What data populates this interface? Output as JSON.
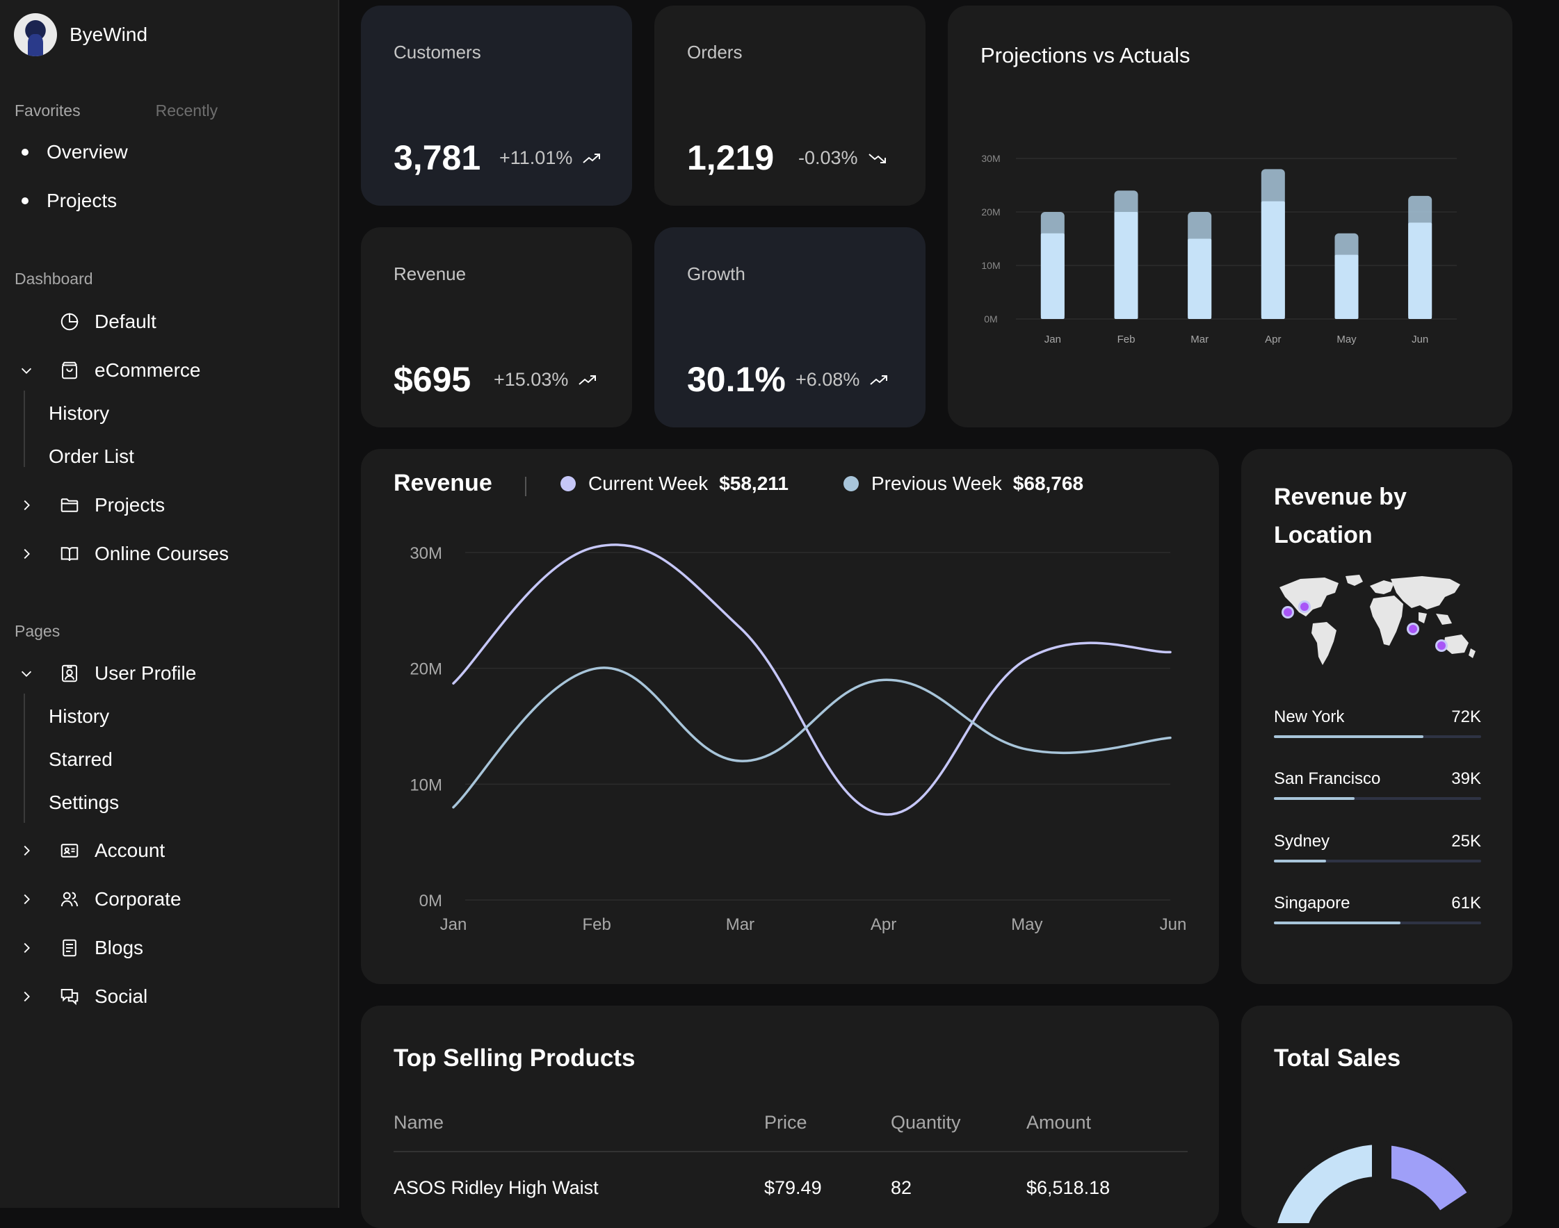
{
  "brand": {
    "name": "ByeWind"
  },
  "sidebar": {
    "tabs": {
      "favorites": "Favorites",
      "recently": "Recently"
    },
    "favorites": [
      "Overview",
      "Projects"
    ],
    "dashboard_label": "Dashboard",
    "dashboard": {
      "default": "Default",
      "ecommerce": "eCommerce",
      "ecommerce_sub": [
        "History",
        "Order List"
      ],
      "projects": "Projects",
      "online_courses": "Online Courses"
    },
    "pages_label": "Pages",
    "pages": {
      "user_profile": "User Profile",
      "user_profile_sub": [
        "History",
        "Starred",
        "Settings"
      ],
      "account": "Account",
      "corporate": "Corporate",
      "blogs": "Blogs",
      "social": "Social"
    }
  },
  "kpis": {
    "customers": {
      "title": "Customers",
      "value": "3,781",
      "change": "+11.01%",
      "trend": "up"
    },
    "orders": {
      "title": "Orders",
      "value": "1,219",
      "change": "-0.03%",
      "trend": "down"
    },
    "revenue": {
      "title": "Revenue",
      "value": "$695",
      "change": "+15.03%",
      "trend": "up"
    },
    "growth": {
      "title": "Growth",
      "value": "30.1%",
      "change": "+6.08%",
      "trend": "up"
    }
  },
  "projections": {
    "title": "Projections vs Actuals"
  },
  "revenue_chart": {
    "title": "Revenue",
    "current_label": "Current Week",
    "current_value": "$58,211",
    "previous_label": "Previous Week",
    "previous_value": "$68,768"
  },
  "location": {
    "title_line1": "Revenue by",
    "title_line2": "Location",
    "rows": [
      {
        "city": "New York",
        "value": "72K",
        "pct": 0.72
      },
      {
        "city": "San Francisco",
        "value": "39K",
        "pct": 0.39
      },
      {
        "city": "Sydney",
        "value": "25K",
        "pct": 0.25
      },
      {
        "city": "Singapore",
        "value": "61K",
        "pct": 0.61
      }
    ]
  },
  "products": {
    "title": "Top Selling Products",
    "headers": [
      "Name",
      "Price",
      "Quantity",
      "Amount"
    ],
    "rows": [
      [
        "ASOS Ridley High Waist",
        "$79.49",
        "82",
        "$6,518.18"
      ]
    ]
  },
  "total_sales": {
    "title": "Total Sales"
  },
  "colors": {
    "accent_light_blue": "#c6e2f8",
    "accent_purple": "#c6c7f8",
    "accent_blue_gray": "#a8c5da",
    "donut_purple": "#9f9ff8"
  },
  "chart_data": [
    {
      "type": "bar",
      "title": "Projections vs Actuals",
      "categories": [
        "Jan",
        "Feb",
        "Mar",
        "Apr",
        "May",
        "Jun"
      ],
      "series": [
        {
          "values": [
            16,
            20,
            15,
            22,
            12,
            18
          ]
        },
        {
          "values": [
            20,
            24,
            20,
            28,
            16,
            23
          ]
        }
      ],
      "yticks": [
        "0M",
        "10M",
        "20M",
        "30M"
      ],
      "ylim": [
        0,
        30
      ],
      "stacked_overlay": true
    },
    {
      "type": "line",
      "title": "Revenue",
      "categories": [
        "Jan",
        "Feb",
        "Mar",
        "Apr",
        "May",
        "Jun"
      ],
      "yticks": [
        "0M",
        "10M",
        "20M",
        "30M"
      ],
      "ylim": [
        0,
        30
      ],
      "series": [
        {
          "name": "Current Week",
          "values": [
            18.7,
            30.5,
            23.5,
            7.4,
            20.8,
            21.4
          ]
        },
        {
          "name": "Previous Week",
          "values": [
            8,
            20,
            12,
            19,
            13,
            14
          ]
        }
      ]
    }
  ]
}
